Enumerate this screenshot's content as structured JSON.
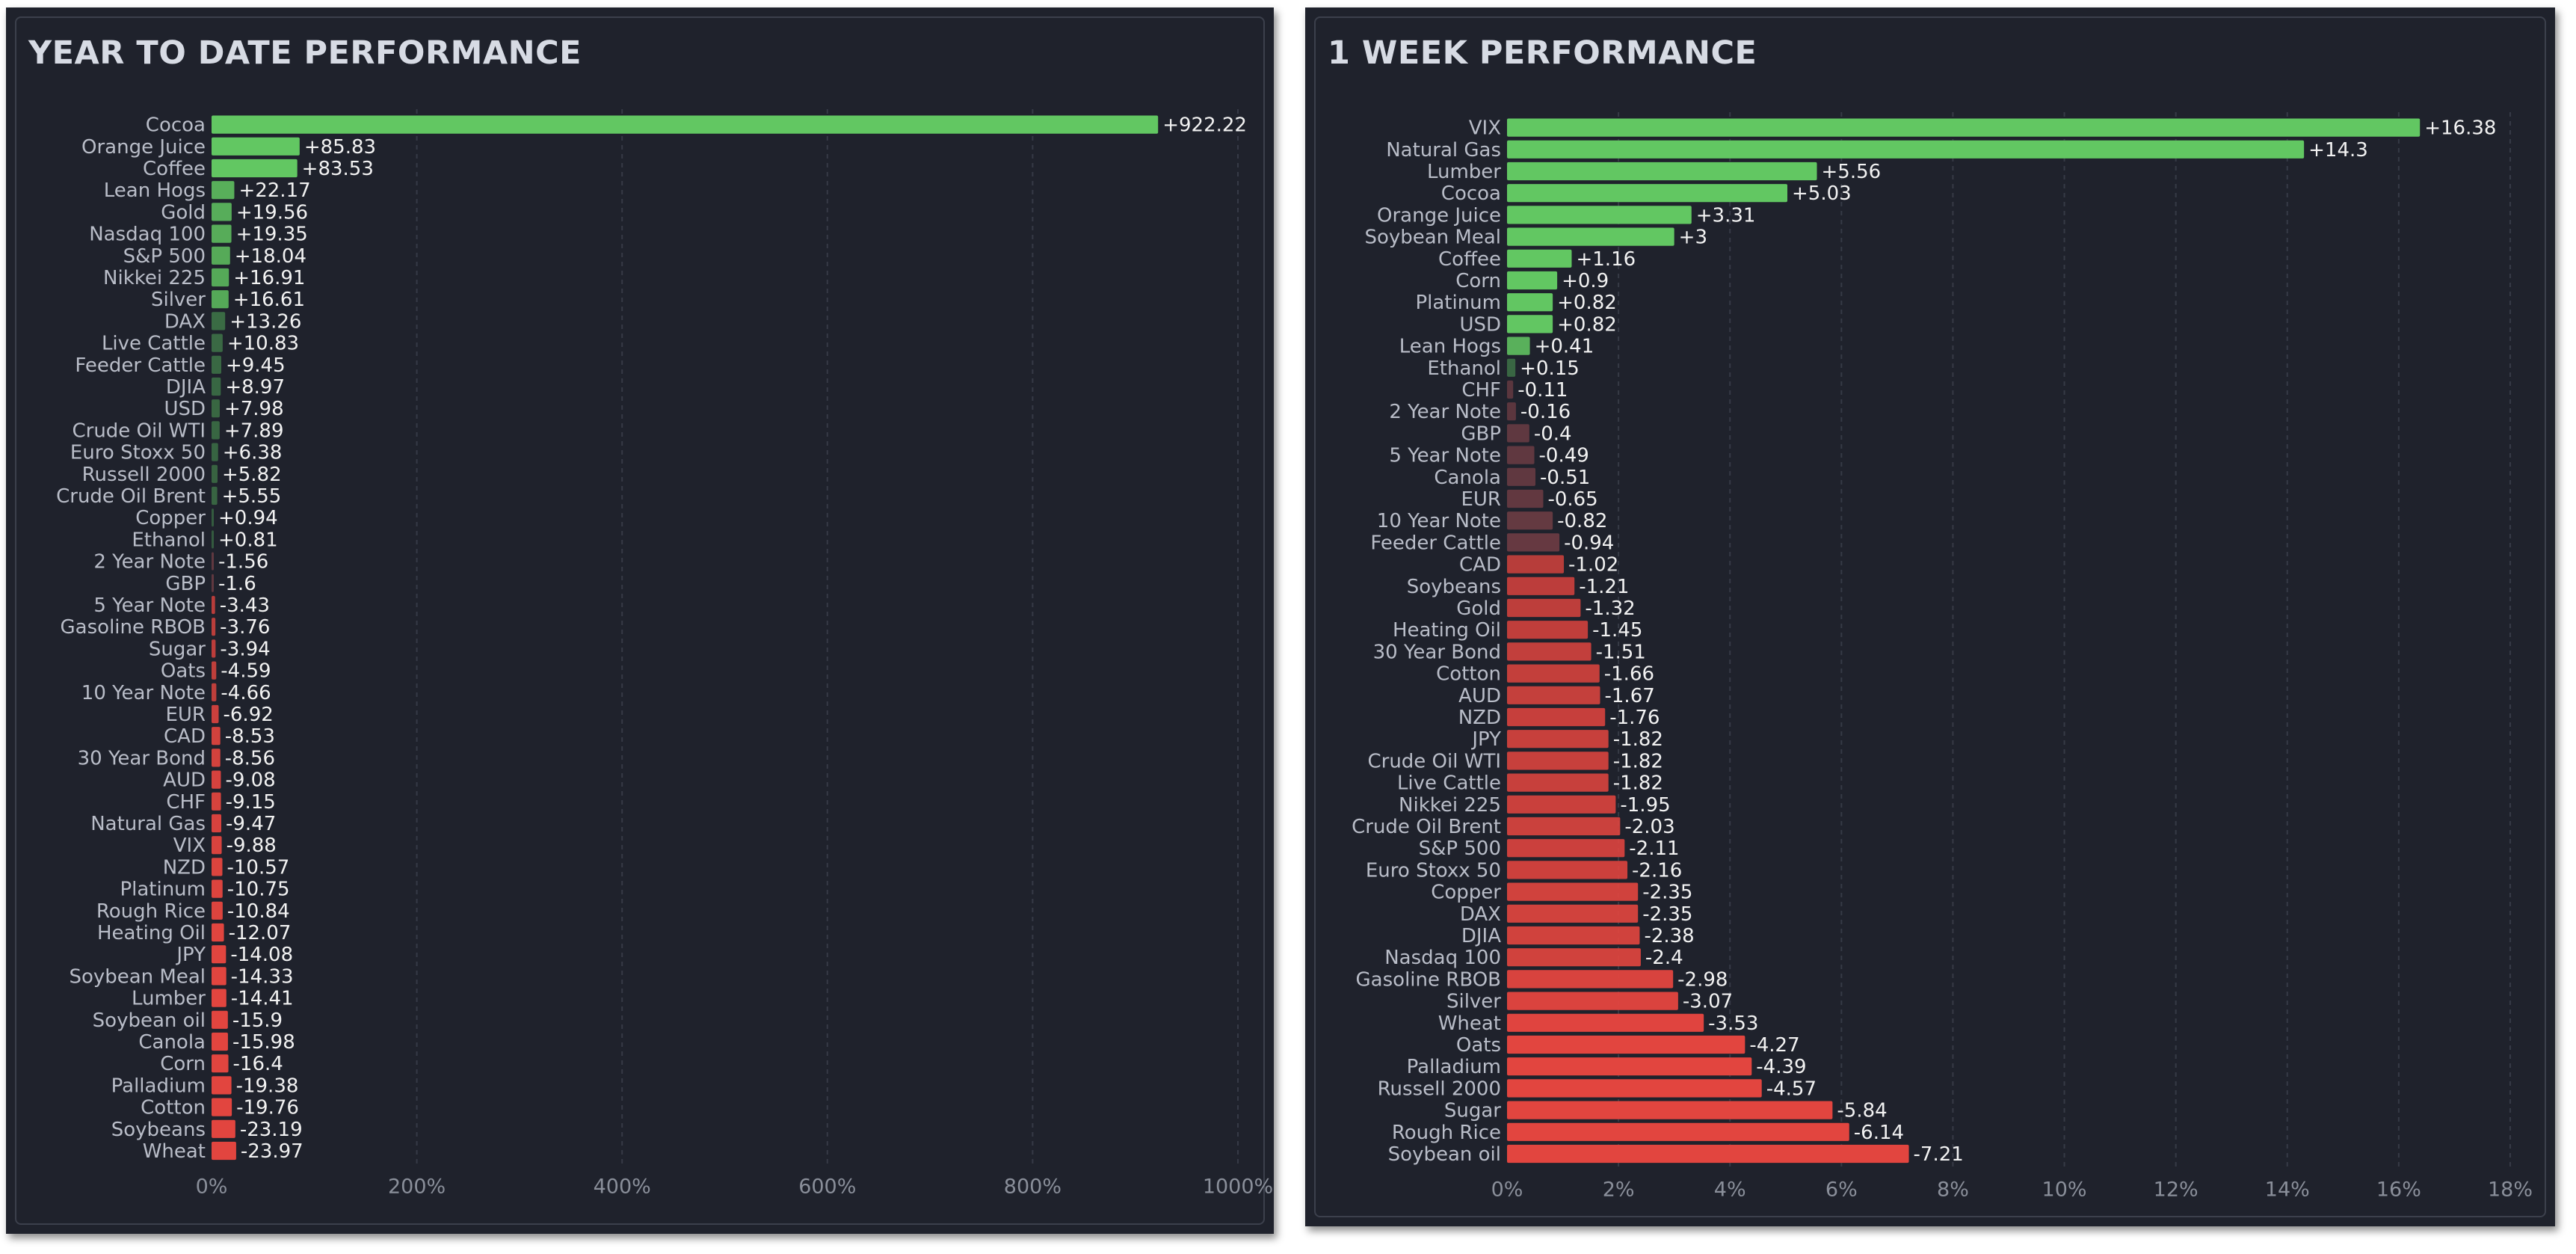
{
  "colors": {
    "positive": "#62c762",
    "positive_dim": "#427f4b",
    "negative": "#e2453f",
    "negative_dim": "#7a4148",
    "label": "#b9bdc8",
    "value": "#f2f2f2",
    "tick": "#8a8f9a",
    "grid": "#363a46",
    "panel": "#1f222c"
  },
  "chart_data": [
    {
      "type": "bar",
      "orientation": "horizontal",
      "title": "YEAR TO DATE PERFORMANCE",
      "xlabel": "",
      "ylabel": "",
      "xlim": [
        0,
        1000
      ],
      "xticks": [
        0,
        200,
        400,
        600,
        800,
        1000
      ],
      "xtick_labels": [
        "0%",
        "200%",
        "400%",
        "600%",
        "800%",
        "1000%"
      ],
      "grid": "vertical dashed",
      "categories": [
        "Cocoa",
        "Orange Juice",
        "Coffee",
        "Lean Hogs",
        "Gold",
        "Nasdaq 100",
        "S&P 500",
        "Nikkei 225",
        "Silver",
        "DAX",
        "Live Cattle",
        "Feeder Cattle",
        "DJIA",
        "USD",
        "Crude Oil WTI",
        "Euro Stoxx 50",
        "Russell 2000",
        "Crude Oil Brent",
        "Copper",
        "Ethanol",
        "2 Year Note",
        "GBP",
        "5 Year Note",
        "Gasoline RBOB",
        "Sugar",
        "Oats",
        "10 Year Note",
        "EUR",
        "CAD",
        "30 Year Bond",
        "AUD",
        "CHF",
        "Natural Gas",
        "VIX",
        "NZD",
        "Platinum",
        "Rough Rice",
        "Heating Oil",
        "JPY",
        "Soybean Meal",
        "Lumber",
        "Soybean oil",
        "Canola",
        "Corn",
        "Palladium",
        "Cotton",
        "Soybeans",
        "Wheat"
      ],
      "values": [
        922.22,
        85.83,
        83.53,
        22.17,
        19.56,
        19.35,
        18.04,
        16.91,
        16.61,
        13.26,
        10.83,
        9.45,
        8.97,
        7.98,
        7.89,
        6.38,
        5.82,
        5.55,
        0.94,
        0.81,
        -1.56,
        -1.6,
        -3.43,
        -3.76,
        -3.94,
        -4.59,
        -4.66,
        -6.92,
        -8.53,
        -8.56,
        -9.08,
        -9.15,
        -9.47,
        -9.88,
        -10.57,
        -10.75,
        -10.84,
        -12.07,
        -14.08,
        -14.33,
        -14.41,
        -15.9,
        -15.98,
        -16.4,
        -19.38,
        -19.76,
        -23.19,
        -23.97
      ],
      "value_labels": [
        "+922.22",
        "+85.83",
        "+83.53",
        "+22.17",
        "+19.56",
        "+19.35",
        "+18.04",
        "+16.91",
        "+16.61",
        "+13.26",
        "+10.83",
        "+9.45",
        "+8.97",
        "+7.98",
        "+7.89",
        "+6.38",
        "+5.82",
        "+5.55",
        "+0.94",
        "+0.81",
        "-1.56",
        "-1.6",
        "-3.43",
        "-3.76",
        "-3.94",
        "-4.59",
        "-4.66",
        "-6.92",
        "-8.53",
        "-8.56",
        "-9.08",
        "-9.15",
        "-9.47",
        "-9.88",
        "-10.57",
        "-10.75",
        "-10.84",
        "-12.07",
        "-14.08",
        "-14.33",
        "-14.41",
        "-15.9",
        "-15.98",
        "-16.4",
        "-19.38",
        "-19.76",
        "-23.19",
        "-23.97"
      ]
    },
    {
      "type": "bar",
      "orientation": "horizontal",
      "title": "1 WEEK PERFORMANCE",
      "xlabel": "",
      "ylabel": "",
      "xlim": [
        0,
        18
      ],
      "xticks": [
        0,
        2,
        4,
        6,
        8,
        10,
        12,
        14,
        16,
        18
      ],
      "xtick_labels": [
        "0%",
        "2%",
        "4%",
        "6%",
        "8%",
        "10%",
        "12%",
        "14%",
        "16%",
        "18%"
      ],
      "grid": "vertical dashed",
      "categories": [
        "VIX",
        "Natural Gas",
        "Lumber",
        "Cocoa",
        "Orange Juice",
        "Soybean Meal",
        "Coffee",
        "Corn",
        "Platinum",
        "USD",
        "Lean Hogs",
        "Ethanol",
        "CHF",
        "2 Year Note",
        "GBP",
        "5 Year Note",
        "Canola",
        "EUR",
        "10 Year Note",
        "Feeder Cattle",
        "CAD",
        "Soybeans",
        "Gold",
        "Heating Oil",
        "30 Year Bond",
        "Cotton",
        "AUD",
        "NZD",
        "JPY",
        "Crude Oil WTI",
        "Live Cattle",
        "Nikkei 225",
        "Crude Oil Brent",
        "S&P 500",
        "Euro Stoxx 50",
        "Copper",
        "DAX",
        "DJIA",
        "Nasdaq 100",
        "Gasoline RBOB",
        "Silver",
        "Wheat",
        "Oats",
        "Palladium",
        "Russell 2000",
        "Sugar",
        "Rough Rice",
        "Soybean oil"
      ],
      "values": [
        16.38,
        14.3,
        5.56,
        5.03,
        3.31,
        3,
        1.16,
        0.9,
        0.82,
        0.82,
        0.41,
        0.15,
        -0.11,
        -0.16,
        -0.4,
        -0.49,
        -0.51,
        -0.65,
        -0.82,
        -0.94,
        -1.02,
        -1.21,
        -1.32,
        -1.45,
        -1.51,
        -1.66,
        -1.67,
        -1.76,
        -1.82,
        -1.82,
        -1.82,
        -1.95,
        -2.03,
        -2.11,
        -2.16,
        -2.35,
        -2.35,
        -2.38,
        -2.4,
        -2.98,
        -3.07,
        -3.53,
        -4.27,
        -4.39,
        -4.57,
        -5.84,
        -6.14,
        -7.21
      ],
      "value_labels": [
        "+16.38",
        "+14.3",
        "+5.56",
        "+5.03",
        "+3.31",
        "+3",
        "+1.16",
        "+0.9",
        "+0.82",
        "+0.82",
        "+0.41",
        "+0.15",
        "-0.11",
        "-0.16",
        "-0.4",
        "-0.49",
        "-0.51",
        "-0.65",
        "-0.82",
        "-0.94",
        "-1.02",
        "-1.21",
        "-1.32",
        "-1.45",
        "-1.51",
        "-1.66",
        "-1.67",
        "-1.76",
        "-1.82",
        "-1.82",
        "-1.82",
        "-1.95",
        "-2.03",
        "-2.11",
        "-2.16",
        "-2.35",
        "-2.35",
        "-2.38",
        "-2.4",
        "-2.98",
        "-3.07",
        "-3.53",
        "-4.27",
        "-4.39",
        "-4.57",
        "-5.84",
        "-6.14",
        "-7.21"
      ]
    }
  ]
}
